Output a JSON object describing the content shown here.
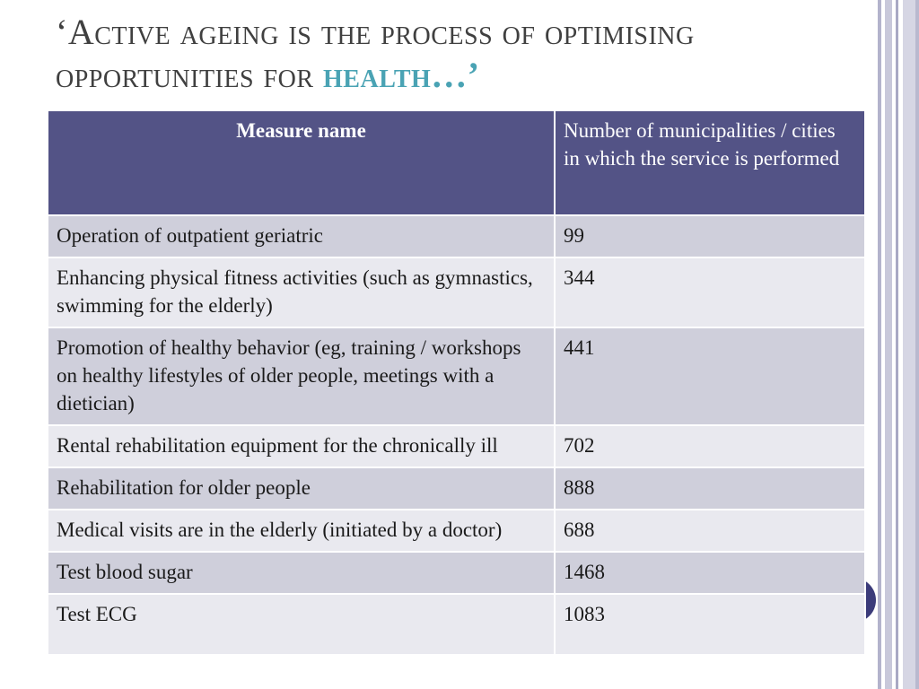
{
  "title": {
    "main": "‘Active ageing is the process of optimising opportunities for ",
    "accent": "health…",
    "closing": "’"
  },
  "table": {
    "headers": {
      "measure": "Measure name",
      "count": "Number of municipalities / cities in which the service is performed"
    },
    "rows": [
      {
        "measure": "Operation of outpatient geriatric",
        "count": "99"
      },
      {
        "measure": "Enhancing physical fitness activities (such as gymnastics, swimming for the elderly)",
        "count": "344"
      },
      {
        "measure": "Promotion of healthy behavior (eg, training / workshops on healthy lifestyles of older people, meetings with a dietician)",
        "count": "441"
      },
      {
        "measure": "Rental rehabilitation equipment for the chronically ill",
        "count": "702"
      },
      {
        "measure": "Rehabilitation for older people",
        "count": "888"
      },
      {
        "measure": "Medical visits are in the elderly (initiated by a doctor)",
        "count": "688"
      },
      {
        "measure": "Test blood sugar",
        "count": "1468"
      },
      {
        "measure": "Test ECG",
        "count": "1083"
      }
    ]
  },
  "colors": {
    "header_bg": "#535386",
    "row_odd": "#cfcfdb",
    "row_even": "#e9e9ef",
    "accent": "#4aa3b4",
    "title_text": "#404040"
  }
}
